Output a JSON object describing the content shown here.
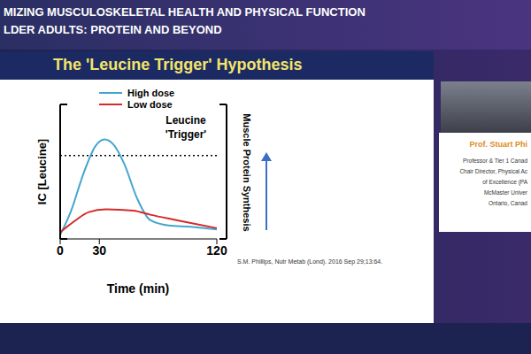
{
  "header": {
    "lines": [
      "MIZING MUSCULOSKELETAL HEALTH AND PHYSICAL FUNCTION",
      "LDER ADULTS: PROTEIN AND BEYOND"
    ]
  },
  "slide": {
    "title": "The 'Leucine Trigger' Hypothesis",
    "citation": "S.M. Phillips, Nutr Metab (Lond). 2016 Sep 29;13:64."
  },
  "speaker": {
    "name": "Prof. Stuart Phi",
    "lines": [
      "Professor & Tier 1 Canad",
      "Chair Director, Physical Ac",
      "of Excellence (PA",
      "McMaster Univer",
      "Ontario, Canad"
    ]
  },
  "chart_data": {
    "type": "line",
    "series": [
      {
        "name": "High dose",
        "color": "#45a5d0",
        "x": [
          0,
          8,
          18,
          27,
          34,
          41,
          49,
          59,
          69,
          83,
          100,
          120
        ],
        "values": [
          0.3,
          2.0,
          4.9,
          6.9,
          7.4,
          7.0,
          5.6,
          3.0,
          1.4,
          1.0,
          0.9,
          0.7
        ]
      },
      {
        "name": "Low dose",
        "color": "#d42a2a",
        "x": [
          0,
          12,
          22,
          35,
          56,
          69,
          89,
          120
        ],
        "values": [
          0.5,
          1.4,
          2.0,
          2.2,
          2.1,
          1.8,
          1.4,
          0.8
        ]
      }
    ],
    "xlim": [
      0,
      120
    ],
    "xticks": [
      0,
      30,
      120
    ],
    "ylim": [
      0,
      10
    ],
    "tick_labels": "x",
    "grid": false,
    "legend": "top",
    "x_label": "Time (min)",
    "y_label": "IC [Leucine]",
    "y2_label": "Muscle Protein Synthesis",
    "reference_line": {
      "y": 6.2,
      "label": "Leucine 'Trigger'",
      "line_style": "dotted"
    }
  }
}
